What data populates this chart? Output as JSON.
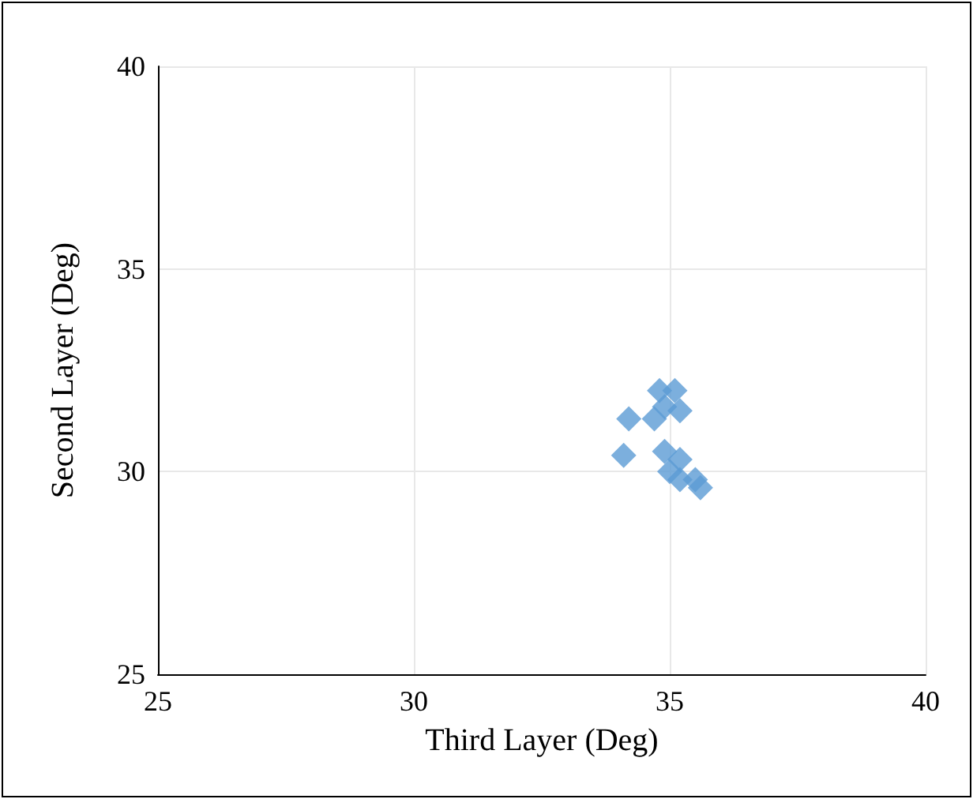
{
  "chart_data": {
    "type": "scatter",
    "xlabel": "Third Layer (Deg)",
    "ylabel": "Second Layer (Deg)",
    "x": [
      34.8,
      35.1,
      34.9,
      35.2,
      34.2,
      34.7,
      34.1,
      34.9,
      35.2,
      35.0,
      35.2,
      35.5,
      35.6
    ],
    "series": [
      {
        "color": "#5b9bd5",
        "values": [
          32.0,
          32.0,
          31.6,
          31.5,
          31.3,
          31.3,
          30.4,
          30.5,
          30.3,
          30.0,
          29.8,
          29.8,
          29.6
        ]
      }
    ],
    "xlim": [
      25,
      40
    ],
    "xticks": [
      25,
      30,
      35,
      40
    ],
    "ylim": [
      25,
      40
    ],
    "yticks": [
      25,
      30,
      35,
      40
    ],
    "grid": true,
    "marker": "diamond"
  }
}
